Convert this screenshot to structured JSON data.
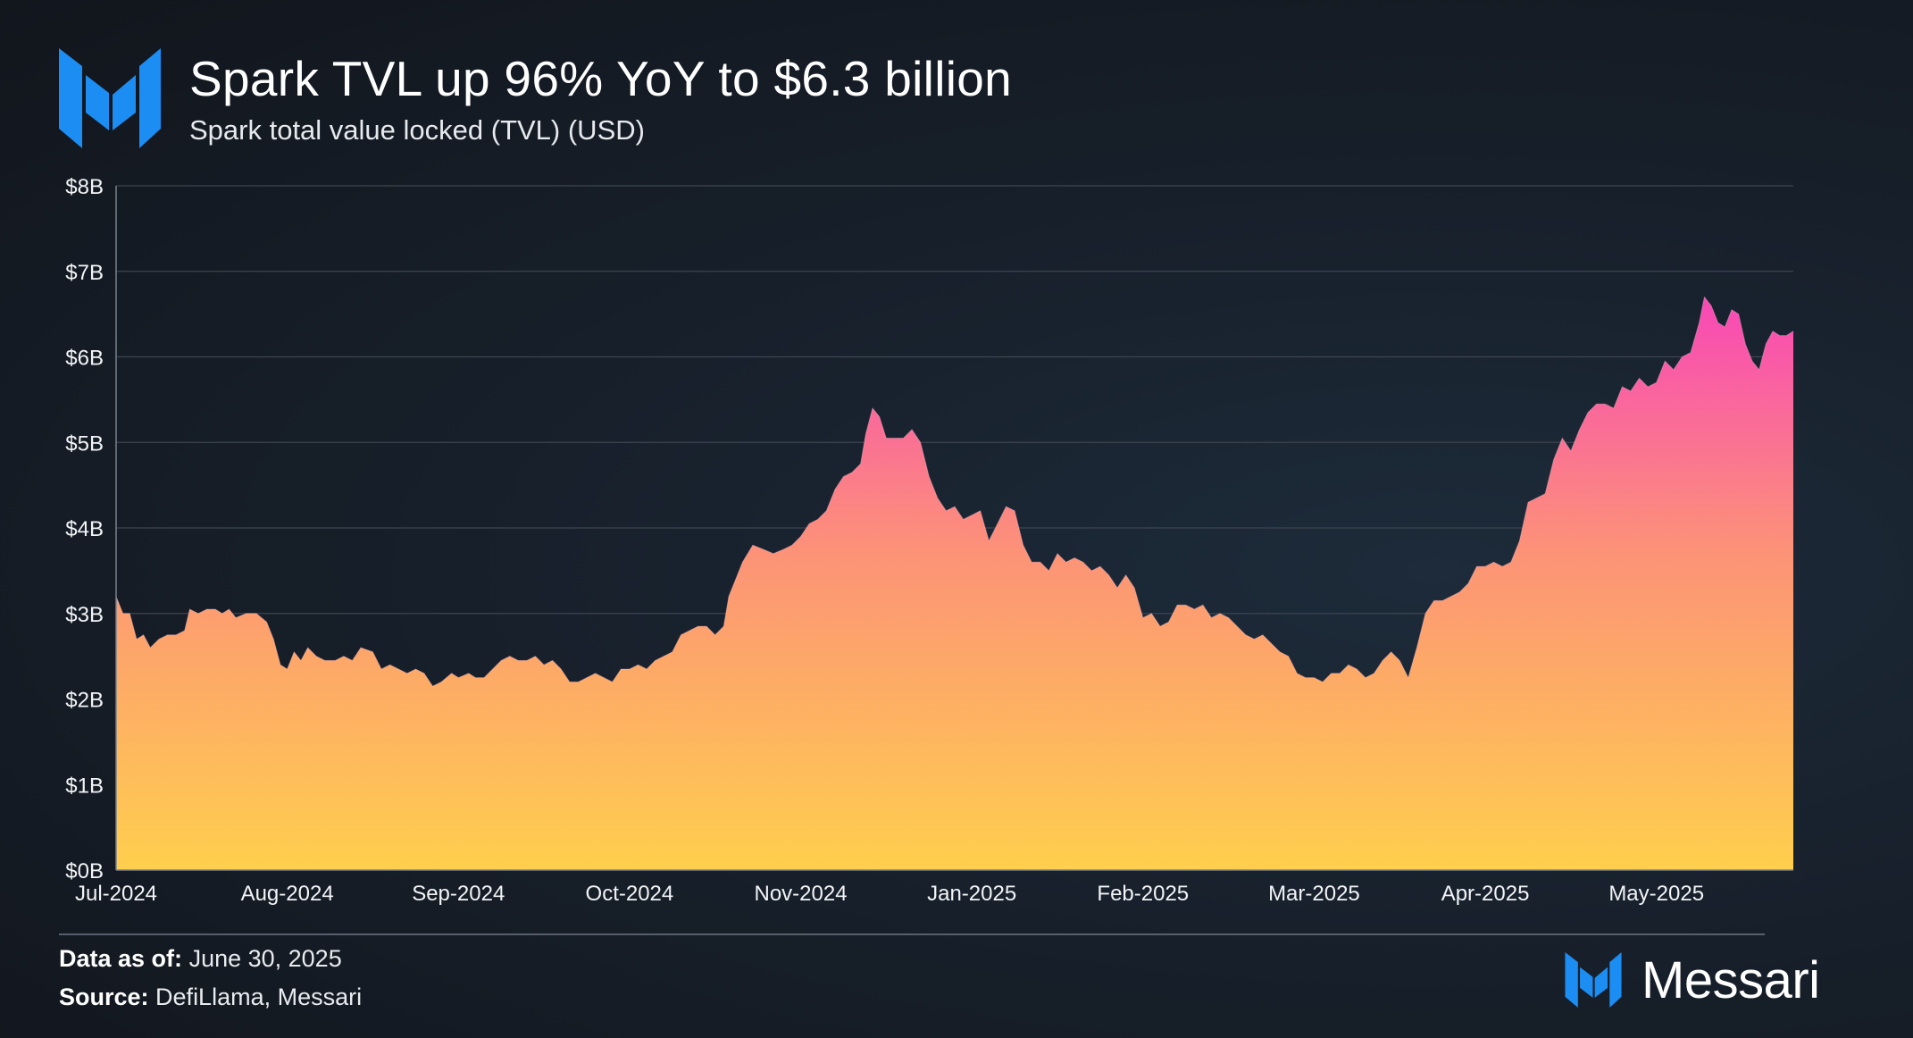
{
  "header": {
    "title": "Spark TVL up 96% YoY to $6.3 billion",
    "subtitle": "Spark total value locked (TVL) (USD)"
  },
  "footer": {
    "data_as_of_label": "Data as of:",
    "data_as_of_value": "June 30, 2025",
    "source_label": "Source:",
    "source_value": "DefiLlama, Messari",
    "brand": "Messari"
  },
  "colors": {
    "brand_blue": "#1c8df2",
    "area_top": "#f848b6",
    "area_mid": "#fc9377",
    "area_bottom": "#ffcf4d",
    "grid": "#3d4550"
  },
  "chart_data": {
    "type": "area",
    "title": "Spark TVL up 96% YoY to $6.3 billion",
    "ylabel": "Spark total value locked (TVL) (USD)",
    "xlabel": "",
    "ylim": [
      0,
      8
    ],
    "y_unit": "billion USD",
    "y_ticks": [
      {
        "v": 0,
        "label": "$0B"
      },
      {
        "v": 1,
        "label": "$1B"
      },
      {
        "v": 2,
        "label": "$2B"
      },
      {
        "v": 3,
        "label": "$3B"
      },
      {
        "v": 4,
        "label": "$4B"
      },
      {
        "v": 5,
        "label": "$5B"
      },
      {
        "v": 6,
        "label": "$6B"
      },
      {
        "v": 7,
        "label": "$7B"
      },
      {
        "v": 8,
        "label": "$8B"
      }
    ],
    "x_domain": [
      0,
      9.8
    ],
    "x_ticks": [
      {
        "t": 0,
        "label": "Jul-2024"
      },
      {
        "t": 1,
        "label": "Aug-2024"
      },
      {
        "t": 2,
        "label": "Sep-2024"
      },
      {
        "t": 3,
        "label": "Oct-2024"
      },
      {
        "t": 4,
        "label": "Nov-2024"
      },
      {
        "t": 5,
        "label": "Jan-2025"
      },
      {
        "t": 6,
        "label": "Feb-2025"
      },
      {
        "t": 7,
        "label": "Mar-2025"
      },
      {
        "t": 8,
        "label": "Apr-2025"
      },
      {
        "t": 9,
        "label": "May-2025"
      }
    ],
    "series": [
      {
        "name": "Spark TVL",
        "points": [
          [
            0,
            3.2
          ],
          [
            0.04,
            3.0
          ],
          [
            0.08,
            3.0
          ],
          [
            0.12,
            2.7
          ],
          [
            0.16,
            2.75
          ],
          [
            0.2,
            2.6
          ],
          [
            0.25,
            2.7
          ],
          [
            0.3,
            2.75
          ],
          [
            0.35,
            2.75
          ],
          [
            0.4,
            2.8
          ],
          [
            0.43,
            3.05
          ],
          [
            0.48,
            3.0
          ],
          [
            0.53,
            3.05
          ],
          [
            0.58,
            3.05
          ],
          [
            0.62,
            3.0
          ],
          [
            0.66,
            3.05
          ],
          [
            0.7,
            2.95
          ],
          [
            0.76,
            3.0
          ],
          [
            0.82,
            3.0
          ],
          [
            0.88,
            2.9
          ],
          [
            0.92,
            2.7
          ],
          [
            0.96,
            2.4
          ],
          [
            1.0,
            2.35
          ],
          [
            1.04,
            2.55
          ],
          [
            1.08,
            2.45
          ],
          [
            1.12,
            2.6
          ],
          [
            1.17,
            2.5
          ],
          [
            1.22,
            2.45
          ],
          [
            1.28,
            2.45
          ],
          [
            1.33,
            2.5
          ],
          [
            1.38,
            2.45
          ],
          [
            1.43,
            2.6
          ],
          [
            1.5,
            2.55
          ],
          [
            1.55,
            2.35
          ],
          [
            1.6,
            2.4
          ],
          [
            1.65,
            2.35
          ],
          [
            1.7,
            2.3
          ],
          [
            1.75,
            2.35
          ],
          [
            1.8,
            2.3
          ],
          [
            1.85,
            2.15
          ],
          [
            1.9,
            2.2
          ],
          [
            1.96,
            2.3
          ],
          [
            2.0,
            2.25
          ],
          [
            2.06,
            2.3
          ],
          [
            2.1,
            2.25
          ],
          [
            2.15,
            2.25
          ],
          [
            2.2,
            2.35
          ],
          [
            2.25,
            2.45
          ],
          [
            2.3,
            2.5
          ],
          [
            2.35,
            2.45
          ],
          [
            2.4,
            2.45
          ],
          [
            2.45,
            2.5
          ],
          [
            2.5,
            2.4
          ],
          [
            2.55,
            2.45
          ],
          [
            2.6,
            2.35
          ],
          [
            2.65,
            2.2
          ],
          [
            2.7,
            2.2
          ],
          [
            2.75,
            2.25
          ],
          [
            2.8,
            2.3
          ],
          [
            2.85,
            2.25
          ],
          [
            2.9,
            2.2
          ],
          [
            2.95,
            2.35
          ],
          [
            3.0,
            2.35
          ],
          [
            3.05,
            2.4
          ],
          [
            3.1,
            2.35
          ],
          [
            3.15,
            2.45
          ],
          [
            3.2,
            2.5
          ],
          [
            3.25,
            2.55
          ],
          [
            3.3,
            2.75
          ],
          [
            3.35,
            2.8
          ],
          [
            3.4,
            2.85
          ],
          [
            3.45,
            2.85
          ],
          [
            3.5,
            2.75
          ],
          [
            3.55,
            2.85
          ],
          [
            3.58,
            3.2
          ],
          [
            3.62,
            3.4
          ],
          [
            3.66,
            3.6
          ],
          [
            3.72,
            3.8
          ],
          [
            3.78,
            3.75
          ],
          [
            3.84,
            3.7
          ],
          [
            3.9,
            3.75
          ],
          [
            3.95,
            3.8
          ],
          [
            4.0,
            3.9
          ],
          [
            4.05,
            4.05
          ],
          [
            4.1,
            4.1
          ],
          [
            4.15,
            4.2
          ],
          [
            4.2,
            4.45
          ],
          [
            4.25,
            4.6
          ],
          [
            4.3,
            4.65
          ],
          [
            4.35,
            4.75
          ],
          [
            4.38,
            5.1
          ],
          [
            4.42,
            5.4
          ],
          [
            4.46,
            5.3
          ],
          [
            4.5,
            5.05
          ],
          [
            4.55,
            5.05
          ],
          [
            4.6,
            5.05
          ],
          [
            4.65,
            5.15
          ],
          [
            4.7,
            5.0
          ],
          [
            4.75,
            4.6
          ],
          [
            4.8,
            4.35
          ],
          [
            4.85,
            4.2
          ],
          [
            4.9,
            4.25
          ],
          [
            4.95,
            4.1
          ],
          [
            5.0,
            4.15
          ],
          [
            5.05,
            4.2
          ],
          [
            5.1,
            3.85
          ],
          [
            5.15,
            4.05
          ],
          [
            5.2,
            4.25
          ],
          [
            5.25,
            4.2
          ],
          [
            5.3,
            3.8
          ],
          [
            5.35,
            3.6
          ],
          [
            5.4,
            3.6
          ],
          [
            5.45,
            3.5
          ],
          [
            5.5,
            3.7
          ],
          [
            5.55,
            3.6
          ],
          [
            5.6,
            3.65
          ],
          [
            5.65,
            3.6
          ],
          [
            5.7,
            3.5
          ],
          [
            5.75,
            3.55
          ],
          [
            5.8,
            3.45
          ],
          [
            5.85,
            3.3
          ],
          [
            5.9,
            3.45
          ],
          [
            5.95,
            3.3
          ],
          [
            6.0,
            2.95
          ],
          [
            6.05,
            3.0
          ],
          [
            6.1,
            2.85
          ],
          [
            6.15,
            2.9
          ],
          [
            6.2,
            3.1
          ],
          [
            6.25,
            3.1
          ],
          [
            6.3,
            3.05
          ],
          [
            6.35,
            3.1
          ],
          [
            6.4,
            2.95
          ],
          [
            6.45,
            3.0
          ],
          [
            6.5,
            2.95
          ],
          [
            6.55,
            2.85
          ],
          [
            6.6,
            2.75
          ],
          [
            6.65,
            2.7
          ],
          [
            6.7,
            2.75
          ],
          [
            6.75,
            2.65
          ],
          [
            6.8,
            2.55
          ],
          [
            6.85,
            2.5
          ],
          [
            6.9,
            2.3
          ],
          [
            6.95,
            2.25
          ],
          [
            7.0,
            2.25
          ],
          [
            7.05,
            2.2
          ],
          [
            7.1,
            2.3
          ],
          [
            7.15,
            2.3
          ],
          [
            7.2,
            2.4
          ],
          [
            7.25,
            2.35
          ],
          [
            7.3,
            2.25
          ],
          [
            7.35,
            2.3
          ],
          [
            7.4,
            2.45
          ],
          [
            7.45,
            2.55
          ],
          [
            7.5,
            2.45
          ],
          [
            7.55,
            2.25
          ],
          [
            7.6,
            2.6
          ],
          [
            7.65,
            3.0
          ],
          [
            7.7,
            3.15
          ],
          [
            7.75,
            3.15
          ],
          [
            7.8,
            3.2
          ],
          [
            7.85,
            3.25
          ],
          [
            7.9,
            3.35
          ],
          [
            7.95,
            3.55
          ],
          [
            8.0,
            3.55
          ],
          [
            8.05,
            3.6
          ],
          [
            8.1,
            3.55
          ],
          [
            8.15,
            3.6
          ],
          [
            8.2,
            3.85
          ],
          [
            8.25,
            4.3
          ],
          [
            8.3,
            4.35
          ],
          [
            8.35,
            4.4
          ],
          [
            8.4,
            4.8
          ],
          [
            8.45,
            5.05
          ],
          [
            8.5,
            4.9
          ],
          [
            8.55,
            5.15
          ],
          [
            8.6,
            5.35
          ],
          [
            8.65,
            5.45
          ],
          [
            8.7,
            5.45
          ],
          [
            8.75,
            5.4
          ],
          [
            8.8,
            5.65
          ],
          [
            8.85,
            5.6
          ],
          [
            8.9,
            5.75
          ],
          [
            8.95,
            5.65
          ],
          [
            9.0,
            5.7
          ],
          [
            9.05,
            5.95
          ],
          [
            9.1,
            5.85
          ],
          [
            9.15,
            6.0
          ],
          [
            9.2,
            6.05
          ],
          [
            9.25,
            6.4
          ],
          [
            9.28,
            6.7
          ],
          [
            9.32,
            6.6
          ],
          [
            9.36,
            6.4
          ],
          [
            9.4,
            6.35
          ],
          [
            9.44,
            6.55
          ],
          [
            9.48,
            6.5
          ],
          [
            9.52,
            6.15
          ],
          [
            9.56,
            5.95
          ],
          [
            9.6,
            5.85
          ],
          [
            9.64,
            6.15
          ],
          [
            9.68,
            6.3
          ],
          [
            9.72,
            6.25
          ],
          [
            9.76,
            6.25
          ],
          [
            9.8,
            6.3
          ]
        ]
      }
    ]
  }
}
